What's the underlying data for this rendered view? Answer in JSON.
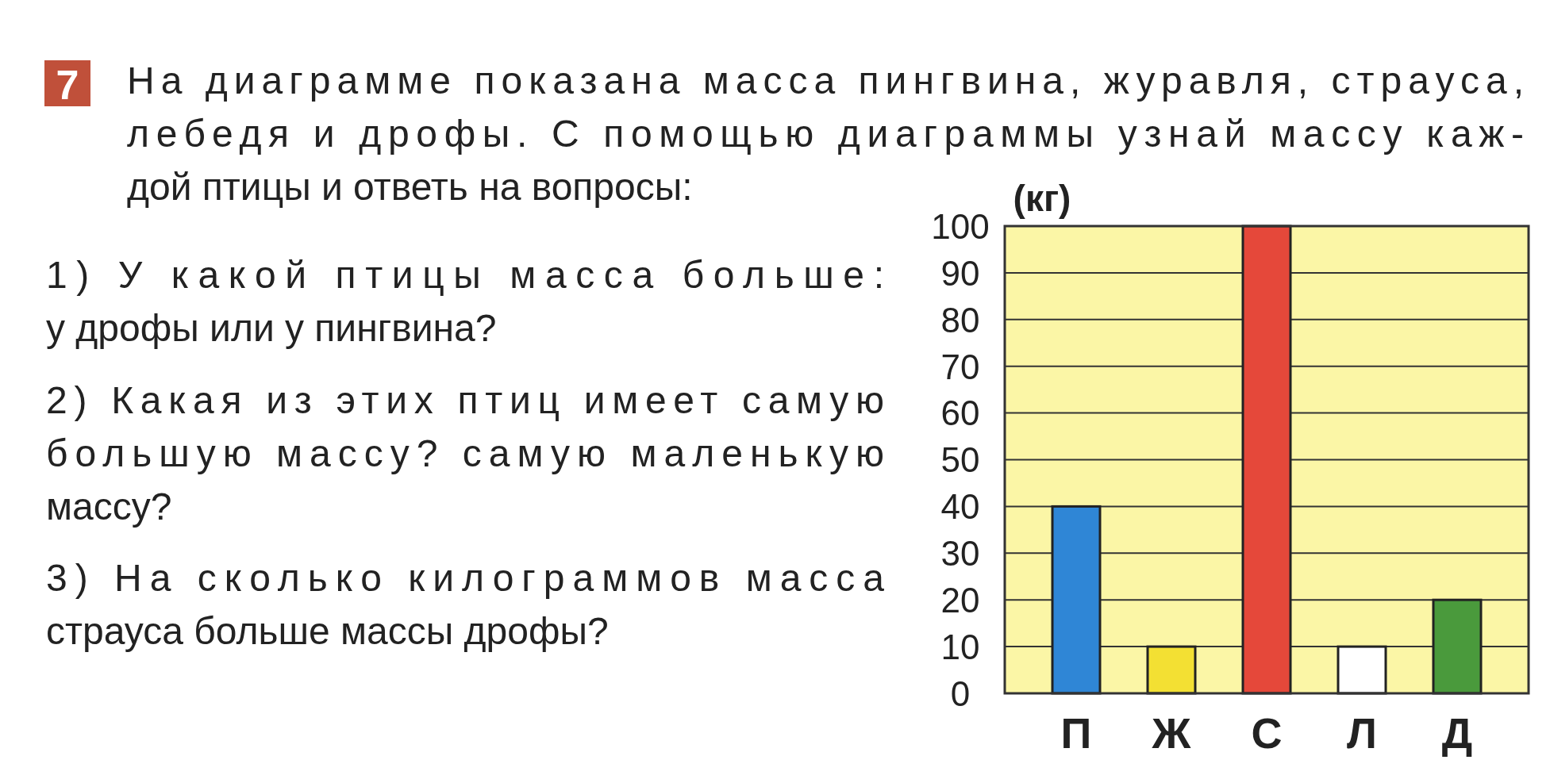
{
  "chart_data": {
    "type": "bar",
    "title": "На диаграмме показана масса пингвина, журавля, страуса,\nлебедя и дрофы. С помощью диаграммы узнай массу каж-\nдой птицы и ответь на вопросы:",
    "ylabel": "(кг)",
    "annotations": [
      "7",
      "1) У какой птицы масса больше:\nу дрофы или у пингвина?",
      "2) Какая из этих птиц имеет самую\nбольшую массу? самую маленькую\nмассу?",
      "3) На сколько килограммов масса\nстрауса больше массы дрофы?"
    ],
    "categories": [
      "П",
      "Ж",
      "С",
      "Л",
      "Д"
    ],
    "values": [
      40,
      10,
      100,
      10,
      20
    ],
    "colors": [
      "#2f86d6",
      "#f3e033",
      "#e5483a",
      "#ffffff",
      "#4a9a3c"
    ],
    "ylim": [
      0,
      100
    ],
    "yticks": [
      0,
      10,
      20,
      30,
      40,
      50,
      60,
      70,
      80,
      90,
      100
    ],
    "grid": "y"
  }
}
